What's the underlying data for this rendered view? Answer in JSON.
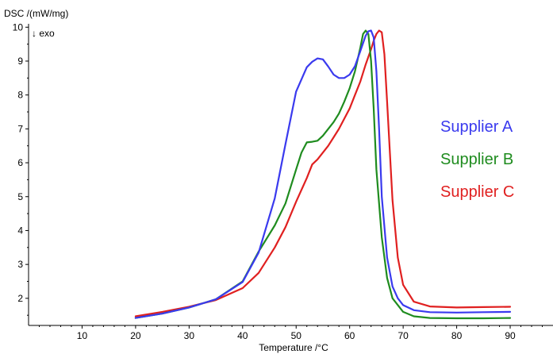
{
  "chart_data": {
    "type": "line",
    "title": "",
    "xlabel": "Temperature /°C",
    "ylabel": "DSC /(mW/mg)",
    "annotation": "↓ exo",
    "xlim": [
      0,
      98
    ],
    "ylim": [
      1.2,
      10.1
    ],
    "xticks": [
      10,
      20,
      30,
      40,
      50,
      60,
      70,
      80,
      90
    ],
    "yticks": [
      2,
      3,
      4,
      5,
      6,
      7,
      8,
      9,
      10
    ],
    "grid": false,
    "legend_position": "right",
    "series": [
      {
        "name": "Supplier A",
        "color": "#3a3aee",
        "x": [
          20,
          25,
          30,
          35,
          40,
          43,
          46,
          48,
          50,
          52,
          53,
          54,
          55,
          56,
          57,
          58,
          59,
          60,
          61,
          62,
          63,
          63.5,
          64,
          64.5,
          65,
          65.5,
          66,
          67,
          68,
          69,
          70,
          72,
          75,
          80,
          85,
          90
        ],
        "y": [
          1.42,
          1.55,
          1.73,
          1.97,
          2.48,
          3.35,
          4.95,
          6.55,
          8.1,
          8.82,
          8.98,
          9.08,
          9.05,
          8.84,
          8.6,
          8.5,
          8.5,
          8.6,
          8.85,
          9.3,
          9.75,
          9.88,
          9.9,
          9.7,
          8.7,
          7.0,
          5.0,
          3.2,
          2.35,
          2.0,
          1.8,
          1.65,
          1.59,
          1.58,
          1.59,
          1.6
        ]
      },
      {
        "name": "Supplier B",
        "color": "#1f8c1f",
        "x": [
          20,
          25,
          30,
          35,
          40,
          43,
          46,
          48,
          50,
          51,
          52,
          53,
          54,
          55,
          56,
          57,
          58,
          59,
          60,
          61,
          62,
          62.5,
          63,
          63.5,
          64,
          64.5,
          65,
          66,
          67,
          68,
          70,
          72,
          75,
          80,
          85,
          90
        ],
        "y": [
          1.42,
          1.55,
          1.73,
          1.97,
          2.5,
          3.38,
          4.15,
          4.8,
          5.8,
          6.3,
          6.6,
          6.62,
          6.65,
          6.8,
          7.0,
          7.2,
          7.45,
          7.8,
          8.2,
          8.7,
          9.4,
          9.8,
          9.9,
          9.8,
          9.0,
          7.6,
          5.8,
          3.8,
          2.6,
          2.0,
          1.6,
          1.47,
          1.42,
          1.41,
          1.41,
          1.42
        ]
      },
      {
        "name": "Supplier C",
        "color": "#e02020",
        "x": [
          20,
          25,
          30,
          35,
          40,
          43,
          46,
          48,
          50,
          52,
          53,
          54,
          55,
          56,
          57,
          58,
          59,
          60,
          61,
          62,
          63,
          64,
          64.5,
          65,
          65.5,
          66,
          66.5,
          67,
          68,
          69,
          70,
          72,
          75,
          80,
          85,
          90
        ],
        "y": [
          1.47,
          1.6,
          1.75,
          1.95,
          2.3,
          2.75,
          3.5,
          4.1,
          4.85,
          5.55,
          5.95,
          6.1,
          6.3,
          6.5,
          6.75,
          7.0,
          7.3,
          7.6,
          8.0,
          8.4,
          8.9,
          9.35,
          9.6,
          9.8,
          9.9,
          9.85,
          9.2,
          7.8,
          4.9,
          3.2,
          2.4,
          1.9,
          1.76,
          1.73,
          1.74,
          1.75
        ]
      }
    ]
  }
}
